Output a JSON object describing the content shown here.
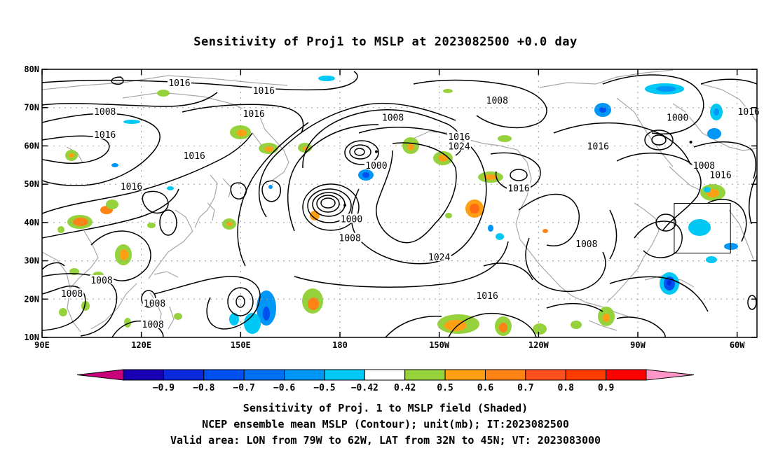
{
  "title": "Sensitivity of Proj1 to MSLP at 2023082500 +0.0 day",
  "footer": {
    "line1": "Sensitivity of Proj. 1 to MSLP field (Shaded)",
    "line2": "NCEP ensemble mean MSLP (Contour); unit(mb); IT:2023082500",
    "line3": "Valid area: LON from 79W to 62W, LAT from 32N to 45N; VT: 2023083000"
  },
  "map": {
    "lon_range": [
      90,
      306
    ],
    "lat_range": [
      10,
      80
    ],
    "x_ticks": [
      {
        "lon": 90,
        "label": "90E"
      },
      {
        "lon": 120,
        "label": "120E"
      },
      {
        "lon": 150,
        "label": "150E"
      },
      {
        "lon": 180,
        "label": "180"
      },
      {
        "lon": 210,
        "label": "150W"
      },
      {
        "lon": 240,
        "label": "120W"
      },
      {
        "lon": 270,
        "label": "90W"
      },
      {
        "lon": 300,
        "label": "60W"
      }
    ],
    "y_ticks": [
      {
        "lat": 80,
        "label": "80N"
      },
      {
        "lat": 70,
        "label": "70N"
      },
      {
        "lat": 60,
        "label": "60N"
      },
      {
        "lat": 50,
        "label": "50N"
      },
      {
        "lat": 40,
        "label": "40N"
      },
      {
        "lat": 30,
        "label": "30N"
      },
      {
        "lat": 20,
        "label": "20N"
      },
      {
        "lat": 10,
        "label": "10N"
      }
    ],
    "grid": "dotted",
    "valid_box": {
      "lon_min": 281,
      "lon_max": 298,
      "lat_min": 32,
      "lat_max": 45
    },
    "contour_labels": [
      {
        "text": "1016",
        "lon": 157,
        "lat": 74.5
      },
      {
        "text": "1008",
        "lon": 109,
        "lat": 69
      },
      {
        "text": "1016",
        "lon": 109,
        "lat": 63
      },
      {
        "text": "1016",
        "lon": 154,
        "lat": 68.5
      },
      {
        "text": "1016",
        "lon": 131.5,
        "lat": 76.5
      },
      {
        "text": "1008",
        "lon": 227.5,
        "lat": 72
      },
      {
        "text": "1000",
        "lon": 282,
        "lat": 67.5
      },
      {
        "text": "1016",
        "lon": 303.5,
        "lat": 69
      },
      {
        "text": "1008",
        "lon": 196,
        "lat": 67.5
      },
      {
        "text": "1016",
        "lon": 216,
        "lat": 62.5
      },
      {
        "text": "1024",
        "lon": 216,
        "lat": 60
      },
      {
        "text": "1016",
        "lon": 258,
        "lat": 60
      },
      {
        "text": "1016",
        "lon": 136,
        "lat": 57.5
      },
      {
        "text": "1000",
        "lon": 191,
        "lat": 55
      },
      {
        "text": "1008",
        "lon": 290,
        "lat": 55
      },
      {
        "text": "1016",
        "lon": 295,
        "lat": 52.5
      },
      {
        "text": "1016",
        "lon": 117,
        "lat": 49.5
      },
      {
        "text": "1016",
        "lon": 234,
        "lat": 49
      },
      {
        "text": "1000",
        "lon": 183.5,
        "lat": 41
      },
      {
        "text": "1008",
        "lon": 183,
        "lat": 36
      },
      {
        "text": "1008",
        "lon": 254.5,
        "lat": 34.5
      },
      {
        "text": "1024",
        "lon": 210,
        "lat": 31
      },
      {
        "text": "1008",
        "lon": 108,
        "lat": 25
      },
      {
        "text": "1016",
        "lon": 224.5,
        "lat": 21
      },
      {
        "text": "1008",
        "lon": 99,
        "lat": 21.5
      },
      {
        "text": "1008",
        "lon": 124,
        "lat": 19
      },
      {
        "text": "1008",
        "lon": 123.5,
        "lat": 13.5
      }
    ],
    "low_centers": [
      {
        "lon": 181.5,
        "lat": 44.5
      },
      {
        "lon": 191,
        "lat": 58.5
      },
      {
        "lon": 286,
        "lat": 61
      }
    ]
  },
  "colorbar": {
    "colors": [
      "#c8007a",
      "#1a00b4",
      "#0a28dc",
      "#0050f0",
      "#0070f0",
      "#0096f5",
      "#00c8f5",
      "#ffffff",
      "#96d23c",
      "#ffa014",
      "#ff8214",
      "#ff501e",
      "#ff3c00",
      "#ff0000",
      "#ff96c8"
    ],
    "labels": [
      "−0.9",
      "−0.8",
      "−0.7",
      "−0.6",
      "−0.5",
      "−0.42",
      "0.42",
      "0.5",
      "0.6",
      "0.7",
      "0.8",
      "0.9"
    ]
  },
  "shading_colors": {
    "positive_weak": "#96d23c",
    "positive_mid": "#ffa014",
    "positive_strong": "#ff7814",
    "negative_weak": "#00c8f5",
    "negative_mid": "#0096f5",
    "negative_strong": "#0050f0"
  }
}
